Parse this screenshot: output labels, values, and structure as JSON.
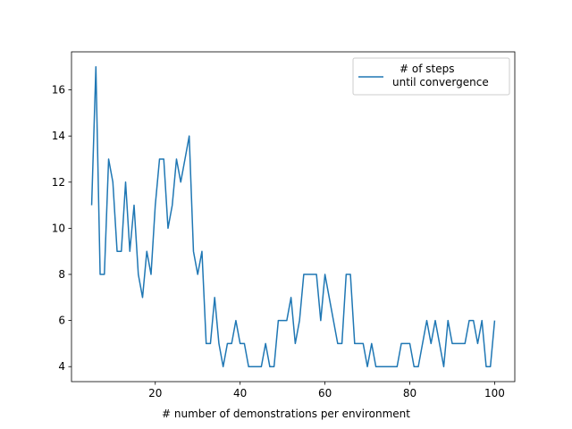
{
  "chart_data": {
    "type": "line",
    "title": "",
    "xlabel": "# number of demonstrations per environment",
    "ylabel": "",
    "xlim": [
      0.25,
      104.75
    ],
    "ylim": [
      3.35,
      17.65
    ],
    "xticks": [
      20,
      40,
      60,
      80,
      100
    ],
    "yticks": [
      4,
      6,
      8,
      10,
      12,
      14,
      16
    ],
    "grid": false,
    "legend_position": "top-right",
    "series": [
      {
        "name": "# of steps\nuntil convergence",
        "color": "#1f77b4",
        "x": [
          5,
          6,
          7,
          8,
          9,
          10,
          11,
          12,
          13,
          14,
          15,
          16,
          17,
          18,
          19,
          20,
          21,
          22,
          23,
          24,
          25,
          26,
          27,
          28,
          29,
          30,
          31,
          32,
          33,
          34,
          35,
          36,
          37,
          38,
          39,
          40,
          41,
          42,
          43,
          44,
          45,
          46,
          47,
          48,
          49,
          50,
          51,
          52,
          53,
          54,
          55,
          56,
          57,
          58,
          59,
          60,
          61,
          62,
          63,
          64,
          65,
          66,
          67,
          68,
          69,
          70,
          71,
          72,
          73,
          74,
          75,
          76,
          77,
          78,
          79,
          80,
          81,
          82,
          83,
          84,
          85,
          86,
          87,
          88,
          89,
          90,
          91,
          92,
          93,
          94,
          95,
          96,
          97,
          98,
          99,
          100
        ],
        "values": [
          11,
          17,
          8,
          8,
          13,
          12,
          9,
          9,
          12,
          9,
          11,
          8,
          7,
          9,
          8,
          11,
          13,
          13,
          10,
          11,
          13,
          12,
          13,
          14,
          9,
          8,
          9,
          5,
          5,
          7,
          5,
          4,
          5,
          5,
          6,
          5,
          5,
          4,
          4,
          4,
          4,
          5,
          4,
          4,
          6,
          6,
          6,
          7,
          5,
          6,
          8,
          8,
          8,
          8,
          6,
          8,
          7,
          6,
          5,
          5,
          8,
          8,
          5,
          5,
          5,
          4,
          5,
          4,
          4,
          4,
          4,
          4,
          4,
          5,
          5,
          5,
          4,
          4,
          5,
          6,
          5,
          6,
          5,
          4,
          6,
          5,
          5,
          5,
          5,
          6,
          6,
          5,
          6,
          4,
          4,
          6
        ]
      }
    ]
  }
}
